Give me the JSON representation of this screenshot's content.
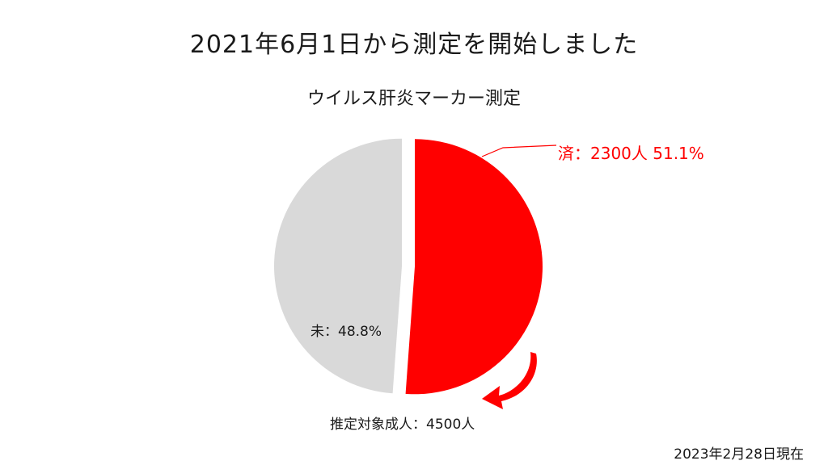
{
  "header": {
    "title": "2021年6月1日から測定を開始しました"
  },
  "chart_data": {
    "type": "pie",
    "title": "ウイルス肝炎マーカー測定",
    "slices": [
      {
        "name": "済",
        "count": 2300,
        "percent": 51.1,
        "label": "済：2300人 51.1%",
        "color": "#ff0000"
      },
      {
        "name": "未",
        "percent": 48.8,
        "label": "未：48.8%",
        "color": "#d9d9d9"
      }
    ],
    "exploded": true,
    "legend": "none"
  },
  "notes": {
    "target": "推定対象成人：4500人",
    "as_of": "2023年2月28日現在"
  }
}
